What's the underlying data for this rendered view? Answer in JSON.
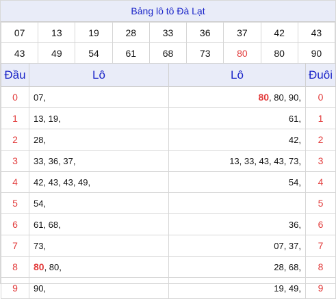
{
  "title": "Bảng lô tô Đà Lạt",
  "numbers_row1": [
    "07",
    "13",
    "19",
    "28",
    "33",
    "36",
    "37",
    "42",
    "43"
  ],
  "numbers_row2": [
    "43",
    "49",
    "54",
    "61",
    "68",
    "73",
    "80",
    "80",
    "90"
  ],
  "highlight_color": "#e23b3b",
  "header_color": "#1a24c8",
  "headers": {
    "dau": "Đầu",
    "lo_left": "Lô",
    "lo_right": "Lô",
    "duoi": "Đuôi"
  },
  "rows": [
    {
      "k": "0",
      "left_hl": "",
      "left": "07,",
      "right_hl": "80",
      "right": ", 80, 90,",
      "k2": "0"
    },
    {
      "k": "1",
      "left_hl": "",
      "left": "13, 19,",
      "right_hl": "",
      "right": "61,",
      "k2": "1"
    },
    {
      "k": "2",
      "left_hl": "",
      "left": "28,",
      "right_hl": "",
      "right": "42,",
      "k2": "2"
    },
    {
      "k": "3",
      "left_hl": "",
      "left": "33, 36, 37,",
      "right_hl": "",
      "right": "13, 33, 43, 43, 73,",
      "k2": "3"
    },
    {
      "k": "4",
      "left_hl": "",
      "left": "42, 43, 43, 49,",
      "right_hl": "",
      "right": "54,",
      "k2": "4"
    },
    {
      "k": "5",
      "left_hl": "",
      "left": "54,",
      "right_hl": "",
      "right": "",
      "k2": "5"
    },
    {
      "k": "6",
      "left_hl": "",
      "left": "61, 68,",
      "right_hl": "",
      "right": "36,",
      "k2": "6"
    },
    {
      "k": "7",
      "left_hl": "",
      "left": "73,",
      "right_hl": "",
      "right": "07, 37,",
      "k2": "7"
    },
    {
      "k": "8",
      "left_hl": "80",
      "left": ", 80,",
      "right_hl": "",
      "right": "28, 68,",
      "k2": "8"
    },
    {
      "k": "9",
      "left_hl": "",
      "left": "90,",
      "right_hl": "",
      "right": "19, 49,",
      "k2": "9"
    }
  ]
}
